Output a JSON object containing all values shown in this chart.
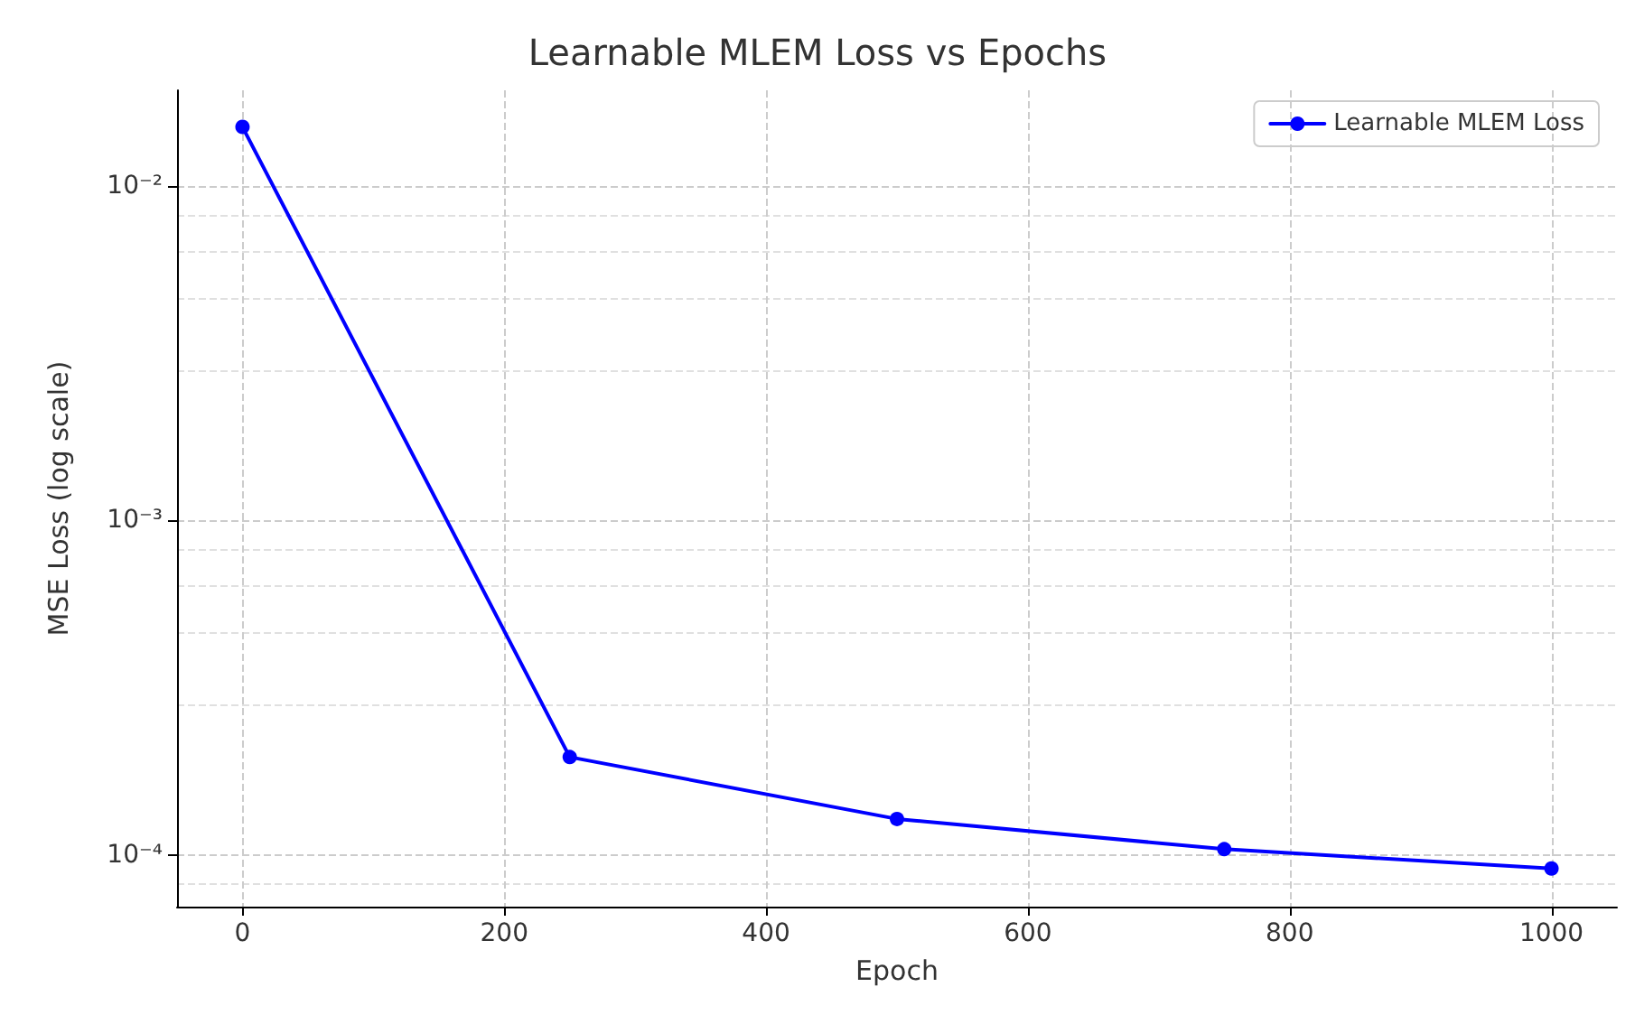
{
  "chart_data": {
    "type": "line",
    "title": "Learnable MLEM Loss vs Epochs",
    "xlabel": "Epoch",
    "ylabel": "MSE Loss (log scale)",
    "x": [
      0,
      250,
      500,
      750,
      1000
    ],
    "series": [
      {
        "name": "Learnable MLEM Loss",
        "color": "#0000ff",
        "values": [
          0.015,
          0.000196,
          0.000128,
          0.000104,
          9.1e-05
        ]
      }
    ],
    "log": "y",
    "xlim": [
      -50,
      1050
    ],
    "xticks": [
      0,
      200,
      400,
      600,
      800,
      1000
    ],
    "ylim": [
      7e-05,
      0.0193
    ],
    "yticks": [
      {
        "value": 0.0001,
        "label": "10⁻⁴"
      },
      {
        "value": 0.001,
        "label": "10⁻³"
      },
      {
        "value": 0.01,
        "label": "10⁻²"
      }
    ],
    "grid": true,
    "legend": "top right",
    "marker": "circle",
    "line_style": "solid"
  }
}
